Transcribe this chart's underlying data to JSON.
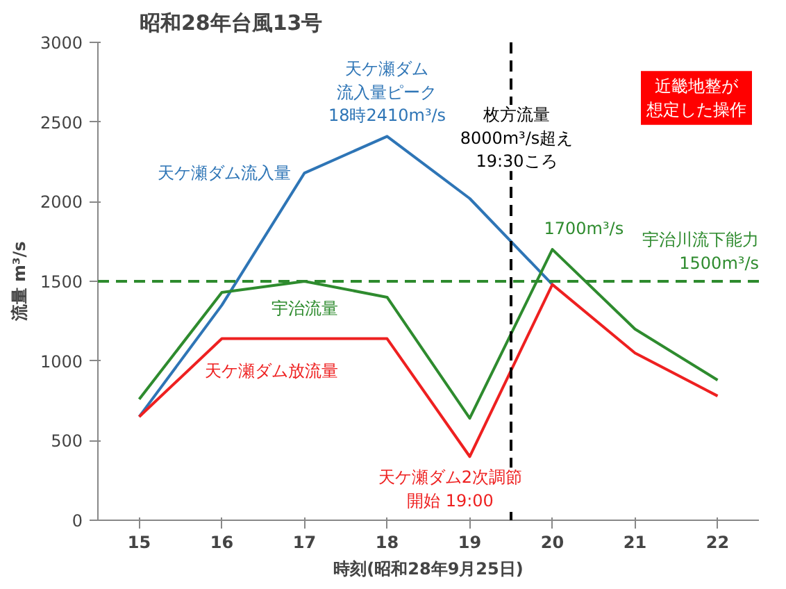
{
  "chart_data": {
    "type": "line",
    "title": "昭和28年台風13号",
    "xlabel": "時刻(昭和28年9月25日)",
    "ylabel": "流量 m³/s",
    "x": [
      15,
      16,
      17,
      18,
      19,
      20,
      21,
      22
    ],
    "xlim": [
      14.5,
      22.5
    ],
    "xticks": [
      15,
      16,
      17,
      18,
      19,
      20,
      21,
      22
    ],
    "ylim": [
      0,
      3000
    ],
    "yticks": [
      0,
      500,
      1000,
      1500,
      2000,
      2500,
      3000
    ],
    "grid": false,
    "legend": false,
    "marker": "none",
    "line_style": "solid",
    "series": [
      {
        "name": "天ケ瀬ダム流入量",
        "color": "#2e75b6",
        "values": [
          650,
          1350,
          2180,
          2410,
          2020,
          1480,
          null,
          null
        ]
      },
      {
        "name": "宇治流量",
        "color": "#2e8b2e",
        "values": [
          760,
          1430,
          1500,
          1400,
          640,
          1700,
          1200,
          880
        ]
      },
      {
        "name": "天ケ瀬ダム放流量",
        "color": "#ee2020",
        "values": [
          650,
          1140,
          1140,
          1140,
          400,
          1480,
          1050,
          780
        ]
      }
    ],
    "ref_lines": [
      {
        "axis": "y",
        "value": 1500,
        "label": "宇治川流下能力\n1500m³/s",
        "color": "#2e8b2e",
        "line_style": "dashed"
      },
      {
        "axis": "x",
        "value": 19.5,
        "label": "枚方流量\n8000m³/s超え\n19:30ころ",
        "color": "#000000",
        "line_style": "dashed"
      }
    ],
    "annotations": [
      {
        "text": "天ケ瀬ダム流入量ピーク18時2410m³/s",
        "x": 18,
        "y": 2410
      },
      {
        "text": "1700m³/s",
        "x": 20,
        "y": 1700
      },
      {
        "text": "天ケ瀬ダム2次調節開始 19:00",
        "x": 19,
        "y": 400
      },
      "近畿地整が想定した操作"
    ]
  }
}
